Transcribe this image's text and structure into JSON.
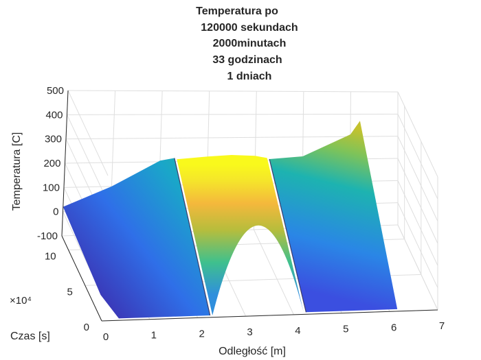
{
  "chart_data": {
    "type": "surface",
    "title": [
      "Temperatura po",
      "120000 sekundach",
      "2000minutach",
      "33 godzinach",
      "1 dniach"
    ],
    "xlabel": "Odległość [m]",
    "ylabel": "Czas [s]",
    "zlabel": "Temperatura [C]",
    "x_ticks": [
      "0",
      "1",
      "2",
      "3",
      "4",
      "5",
      "6",
      "7"
    ],
    "y_ticks": [
      "0",
      "5",
      "10"
    ],
    "y_multiplier": "×10⁴",
    "z_ticks": [
      "-100",
      "0",
      "100",
      "200",
      "300",
      "400",
      "500"
    ],
    "xlim": [
      0,
      7
    ],
    "ylim": [
      0,
      12
    ],
    "zlim": [
      -100,
      500
    ],
    "colormap": "parula",
    "grid": true,
    "final_profile": {
      "x": [
        0,
        1,
        2,
        2.3,
        2.35,
        3.0,
        3.5,
        4.0,
        4.25,
        4.3,
        5,
        6,
        6.2
      ],
      "temperature": [
        20,
        100,
        205,
        215,
        210,
        220,
        225,
        220,
        210,
        205,
        215,
        310,
        370
      ]
    }
  }
}
